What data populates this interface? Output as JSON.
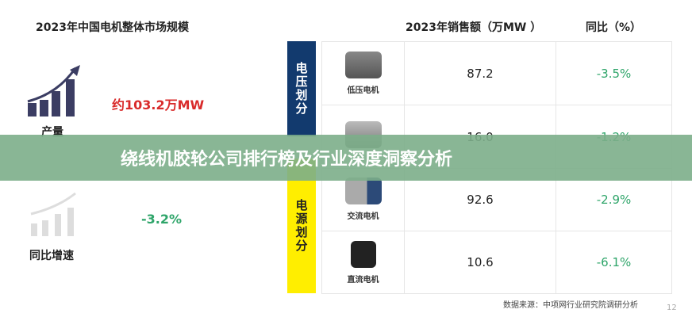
{
  "left": {
    "title": "2023年中国电机整体市场规模",
    "output": {
      "label": "产量",
      "value": "约103.2万MW",
      "color": "#d92b2b",
      "icon": "bar-chart-up-icon"
    },
    "growth": {
      "label": "同比增速",
      "value": "-3.2%",
      "color": "#2fa56a",
      "icon": "bar-chart-up-icon"
    }
  },
  "table": {
    "headers": {
      "sales": "2023年销售额（万MW ）",
      "yoy": "同比（%）"
    },
    "groups": [
      {
        "label": "电压划分",
        "color": "#123a6e"
      },
      {
        "label": "电源划分",
        "color": "#ffee00"
      }
    ],
    "rows": [
      {
        "name": "低压电机",
        "sales": "87.2",
        "yoy": "-3.5%"
      },
      {
        "name": "",
        "sales": "16.0",
        "yoy": "-1.2%"
      },
      {
        "name": "交流电机",
        "sales": "92.6",
        "yoy": "-2.9%"
      },
      {
        "name": "直流电机",
        "sales": "10.6",
        "yoy": "-6.1%"
      }
    ]
  },
  "source": "数据来源：中项网行业研究院调研分析",
  "page_number": "12",
  "banner": {
    "text": "绕线机胶轮公司排行榜及行业深度洞察分析"
  }
}
